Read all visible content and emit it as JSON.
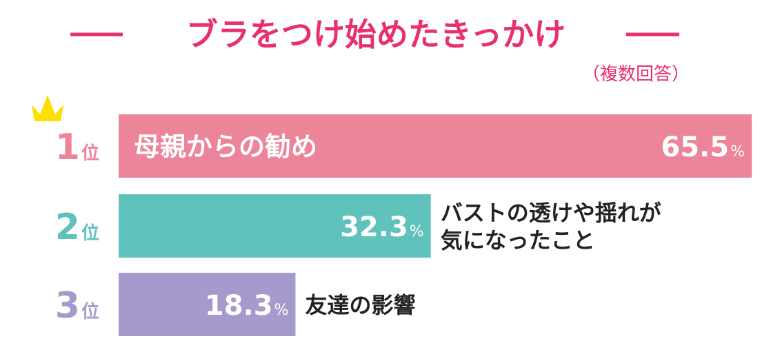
{
  "chart_data": {
    "type": "bar",
    "title": "ブラをつけ始めたきっかけ",
    "subtitle": "（複数回答）",
    "rank_suffix": "位",
    "value_unit": "%",
    "xlim": [
      0,
      65.5
    ],
    "categories": [
      "母親からの勧め",
      "バストの透けや揺れが気になったこと",
      "友達の影響"
    ],
    "ranks": [
      "1",
      "2",
      "3"
    ],
    "values": [
      65.5,
      32.3,
      18.3
    ],
    "value_labels": [
      "65.5",
      "32.3",
      "18.3"
    ],
    "label_lines": [
      [
        "母親からの勧め"
      ],
      [
        "バストの透けや揺れが",
        "気になったこと"
      ],
      [
        "友達の影響"
      ]
    ],
    "label_placement": [
      "inside",
      "outside",
      "outside"
    ],
    "colors": [
      "#ec8599",
      "#5fc2bd",
      "#a59acb"
    ],
    "title_color": "#e8306b",
    "crown_color": "#fce000",
    "grid": false,
    "legend": "none"
  }
}
